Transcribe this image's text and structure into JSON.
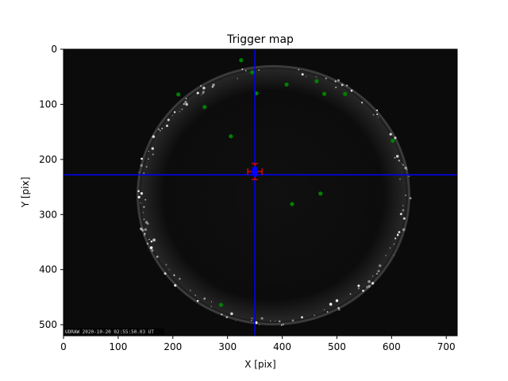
{
  "chart_data": {
    "type": "scatter",
    "title": "Trigger map",
    "xlabel": "X [pix]",
    "ylabel": "Y [pix]",
    "xlim": [
      0,
      720
    ],
    "ylim": [
      520,
      0
    ],
    "y_inverted": true,
    "xticks": [
      0,
      100,
      200,
      300,
      400,
      500,
      600,
      700
    ],
    "yticks": [
      0,
      100,
      200,
      300,
      400,
      500
    ],
    "grid": false,
    "background": "all-sky camera image",
    "image_stamp": "UDRAW 2020-10-20 02:55:50.03 UT",
    "crosshair": {
      "x": 350,
      "y": 228,
      "color": "#0000ff"
    },
    "trigger_marker": {
      "x": 350,
      "y": 222,
      "marker_color": "#0000ff",
      "error_bar_color": "#ff0000"
    },
    "series": [
      {
        "color": "#008000",
        "points": [
          {
            "x": 325,
            "y": 20
          },
          {
            "x": 345,
            "y": 42
          },
          {
            "x": 353,
            "y": 80
          },
          {
            "x": 408,
            "y": 64
          },
          {
            "x": 463,
            "y": 58
          },
          {
            "x": 477,
            "y": 81
          },
          {
            "x": 515,
            "y": 81
          },
          {
            "x": 210,
            "y": 82
          },
          {
            "x": 258,
            "y": 105
          },
          {
            "x": 306,
            "y": 158
          },
          {
            "x": 602,
            "y": 166
          },
          {
            "x": 470,
            "y": 262
          },
          {
            "x": 418,
            "y": 281
          },
          {
            "x": 288,
            "y": 464
          }
        ]
      }
    ]
  }
}
